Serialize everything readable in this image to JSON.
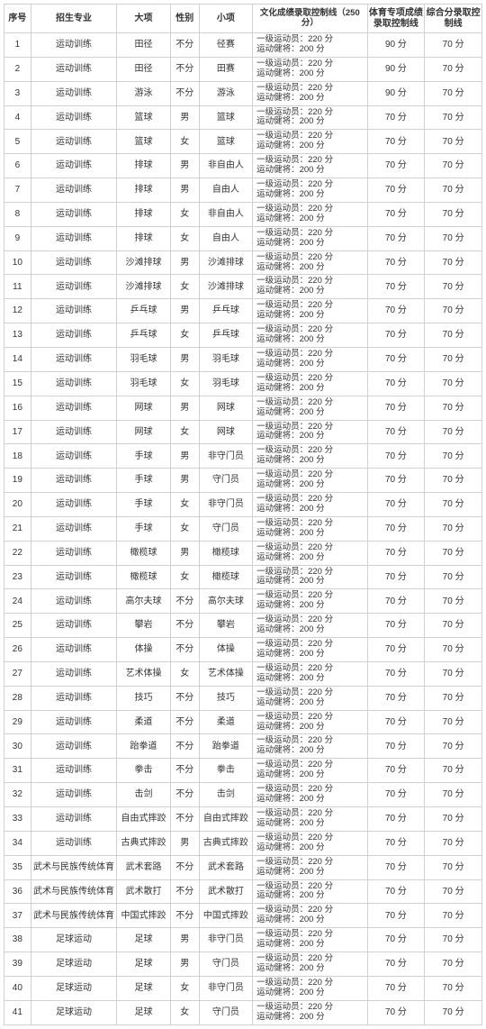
{
  "columns": [
    "序号",
    "招生专业",
    "大项",
    "性别",
    "小项",
    "文化成绩录取控制线（250 分）",
    "体育专项成绩录取控制线",
    "综合分录取控制线"
  ],
  "cultural_lines": [
    "一级运动员：220 分",
    "运动健将：200 分"
  ],
  "rows": [
    {
      "idx": 1,
      "major": "运动训练",
      "cat": "田径",
      "sex": "不分",
      "sub": "径赛",
      "sport": "90 分",
      "comp": "70 分"
    },
    {
      "idx": 2,
      "major": "运动训练",
      "cat": "田径",
      "sex": "不分",
      "sub": "田赛",
      "sport": "90 分",
      "comp": "70 分"
    },
    {
      "idx": 3,
      "major": "运动训练",
      "cat": "游泳",
      "sex": "不分",
      "sub": "游泳",
      "sport": "90 分",
      "comp": "70 分"
    },
    {
      "idx": 4,
      "major": "运动训练",
      "cat": "篮球",
      "sex": "男",
      "sub": "篮球",
      "sport": "70 分",
      "comp": "70 分"
    },
    {
      "idx": 5,
      "major": "运动训练",
      "cat": "篮球",
      "sex": "女",
      "sub": "篮球",
      "sport": "70 分",
      "comp": "70 分"
    },
    {
      "idx": 6,
      "major": "运动训练",
      "cat": "排球",
      "sex": "男",
      "sub": "非自由人",
      "sport": "70 分",
      "comp": "70 分"
    },
    {
      "idx": 7,
      "major": "运动训练",
      "cat": "排球",
      "sex": "男",
      "sub": "自由人",
      "sport": "70 分",
      "comp": "70 分"
    },
    {
      "idx": 8,
      "major": "运动训练",
      "cat": "排球",
      "sex": "女",
      "sub": "非自由人",
      "sport": "70 分",
      "comp": "70 分"
    },
    {
      "idx": 9,
      "major": "运动训练",
      "cat": "排球",
      "sex": "女",
      "sub": "自由人",
      "sport": "70 分",
      "comp": "70 分"
    },
    {
      "idx": 10,
      "major": "运动训练",
      "cat": "沙滩排球",
      "sex": "男",
      "sub": "沙滩排球",
      "sport": "70 分",
      "comp": "70 分"
    },
    {
      "idx": 11,
      "major": "运动训练",
      "cat": "沙滩排球",
      "sex": "女",
      "sub": "沙滩排球",
      "sport": "70 分",
      "comp": "70 分"
    },
    {
      "idx": 12,
      "major": "运动训练",
      "cat": "乒乓球",
      "sex": "男",
      "sub": "乒乓球",
      "sport": "70 分",
      "comp": "70 分"
    },
    {
      "idx": 13,
      "major": "运动训练",
      "cat": "乒乓球",
      "sex": "女",
      "sub": "乒乓球",
      "sport": "70 分",
      "comp": "70 分"
    },
    {
      "idx": 14,
      "major": "运动训练",
      "cat": "羽毛球",
      "sex": "男",
      "sub": "羽毛球",
      "sport": "70 分",
      "comp": "70 分"
    },
    {
      "idx": 15,
      "major": "运动训练",
      "cat": "羽毛球",
      "sex": "女",
      "sub": "羽毛球",
      "sport": "70 分",
      "comp": "70 分"
    },
    {
      "idx": 16,
      "major": "运动训练",
      "cat": "网球",
      "sex": "男",
      "sub": "网球",
      "sport": "70 分",
      "comp": "70 分"
    },
    {
      "idx": 17,
      "major": "运动训练",
      "cat": "网球",
      "sex": "女",
      "sub": "网球",
      "sport": "70 分",
      "comp": "70 分"
    },
    {
      "idx": 18,
      "major": "运动训练",
      "cat": "手球",
      "sex": "男",
      "sub": "非守门员",
      "sport": "70 分",
      "comp": "70 分"
    },
    {
      "idx": 19,
      "major": "运动训练",
      "cat": "手球",
      "sex": "男",
      "sub": "守门员",
      "sport": "70 分",
      "comp": "70 分"
    },
    {
      "idx": 20,
      "major": "运动训练",
      "cat": "手球",
      "sex": "女",
      "sub": "非守门员",
      "sport": "70 分",
      "comp": "70 分"
    },
    {
      "idx": 21,
      "major": "运动训练",
      "cat": "手球",
      "sex": "女",
      "sub": "守门员",
      "sport": "70 分",
      "comp": "70 分"
    },
    {
      "idx": 22,
      "major": "运动训练",
      "cat": "橄榄球",
      "sex": "男",
      "sub": "橄榄球",
      "sport": "70 分",
      "comp": "70 分"
    },
    {
      "idx": 23,
      "major": "运动训练",
      "cat": "橄榄球",
      "sex": "女",
      "sub": "橄榄球",
      "sport": "70 分",
      "comp": "70 分"
    },
    {
      "idx": 24,
      "major": "运动训练",
      "cat": "高尔夫球",
      "sex": "不分",
      "sub": "高尔夫球",
      "sport": "70 分",
      "comp": "70 分"
    },
    {
      "idx": 25,
      "major": "运动训练",
      "cat": "攀岩",
      "sex": "不分",
      "sub": "攀岩",
      "sport": "70 分",
      "comp": "70 分"
    },
    {
      "idx": 26,
      "major": "运动训练",
      "cat": "体操",
      "sex": "不分",
      "sub": "体操",
      "sport": "70 分",
      "comp": "70 分"
    },
    {
      "idx": 27,
      "major": "运动训练",
      "cat": "艺术体操",
      "sex": "女",
      "sub": "艺术体操",
      "sport": "70 分",
      "comp": "70 分"
    },
    {
      "idx": 28,
      "major": "运动训练",
      "cat": "技巧",
      "sex": "不分",
      "sub": "技巧",
      "sport": "70 分",
      "comp": "70 分"
    },
    {
      "idx": 29,
      "major": "运动训练",
      "cat": "柔道",
      "sex": "不分",
      "sub": "柔道",
      "sport": "70 分",
      "comp": "70 分"
    },
    {
      "idx": 30,
      "major": "运动训练",
      "cat": "跆拳道",
      "sex": "不分",
      "sub": "跆拳道",
      "sport": "70 分",
      "comp": "70 分"
    },
    {
      "idx": 31,
      "major": "运动训练",
      "cat": "拳击",
      "sex": "不分",
      "sub": "拳击",
      "sport": "70 分",
      "comp": "70 分"
    },
    {
      "idx": 32,
      "major": "运动训练",
      "cat": "击剑",
      "sex": "不分",
      "sub": "击剑",
      "sport": "70 分",
      "comp": "70 分"
    },
    {
      "idx": 33,
      "major": "运动训练",
      "cat": "自由式摔跤",
      "sex": "不分",
      "sub": "自由式摔跤",
      "sport": "70 分",
      "comp": "70 分"
    },
    {
      "idx": 34,
      "major": "运动训练",
      "cat": "古典式摔跤",
      "sex": "男",
      "sub": "古典式摔跤",
      "sport": "70 分",
      "comp": "70 分"
    },
    {
      "idx": 35,
      "major": "武术与民族传统体育",
      "cat": "武术套路",
      "sex": "不分",
      "sub": "武术套路",
      "sport": "70 分",
      "comp": "70 分"
    },
    {
      "idx": 36,
      "major": "武术与民族传统体育",
      "cat": "武术散打",
      "sex": "不分",
      "sub": "武术散打",
      "sport": "70 分",
      "comp": "70 分"
    },
    {
      "idx": 37,
      "major": "武术与民族传统体育",
      "cat": "中国式摔跤",
      "sex": "不分",
      "sub": "中国式摔跤",
      "sport": "70 分",
      "comp": "70 分"
    },
    {
      "idx": 38,
      "major": "足球运动",
      "cat": "足球",
      "sex": "男",
      "sub": "非守门员",
      "sport": "70 分",
      "comp": "70 分"
    },
    {
      "idx": 39,
      "major": "足球运动",
      "cat": "足球",
      "sex": "男",
      "sub": "守门员",
      "sport": "70 分",
      "comp": "70 分"
    },
    {
      "idx": 40,
      "major": "足球运动",
      "cat": "足球",
      "sex": "女",
      "sub": "非守门员",
      "sport": "70 分",
      "comp": "70 分"
    },
    {
      "idx": 41,
      "major": "足球运动",
      "cat": "足球",
      "sex": "女",
      "sub": "守门员",
      "sport": "70 分",
      "comp": "70 分"
    }
  ]
}
